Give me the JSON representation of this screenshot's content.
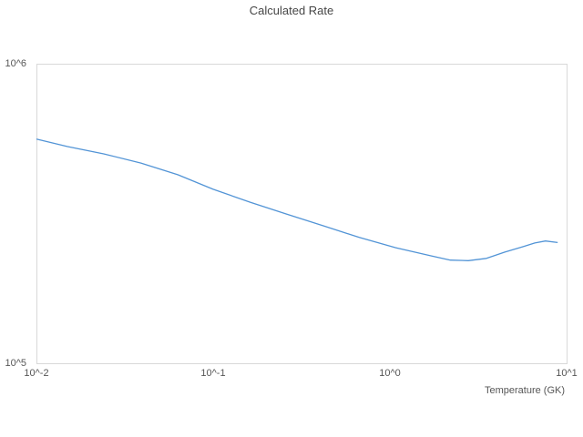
{
  "title": "Calculated Rate",
  "colors": {
    "line": "#5294d6",
    "plot_border": "#d9d9d9",
    "background": "#ffffff",
    "title_text": "#464646",
    "tick_text": "#565656"
  },
  "chart_data": {
    "type": "line",
    "title": "Calculated Rate",
    "xlabel": "Temperature (GK)",
    "ylabel": "",
    "x_scale": "log",
    "y_scale": "log",
    "xlim": [
      0.01,
      10
    ],
    "ylim": [
      100000,
      1000000
    ],
    "grid": false,
    "legend_position": "none",
    "x_ticks": [
      {
        "label": "10^-2",
        "value": 0.01
      },
      {
        "label": "10^-1",
        "value": 0.1
      },
      {
        "label": "10^0",
        "value": 1
      },
      {
        "label": "10^1",
        "value": 10
      }
    ],
    "y_ticks": [
      {
        "label": "10^5",
        "value": 100000
      },
      {
        "label": "10^6",
        "value": 1000000
      }
    ],
    "series": [
      {
        "name": "Calculated Rate",
        "x": [
          0.01,
          0.015,
          0.024,
          0.039,
          0.063,
          0.1,
          0.162,
          0.26,
          0.418,
          0.671,
          1.08,
          1.73,
          2.2,
          2.78,
          3.52,
          4.47,
          5.66,
          6.61,
          7.59,
          8.9
        ],
        "y": [
          560000,
          529000,
          500000,
          466000,
          426000,
          381000,
          345000,
          315000,
          288000,
          263000,
          243000,
          228000,
          221000,
          220000,
          224000,
          235000,
          245000,
          252000,
          256000,
          253000
        ]
      }
    ]
  }
}
